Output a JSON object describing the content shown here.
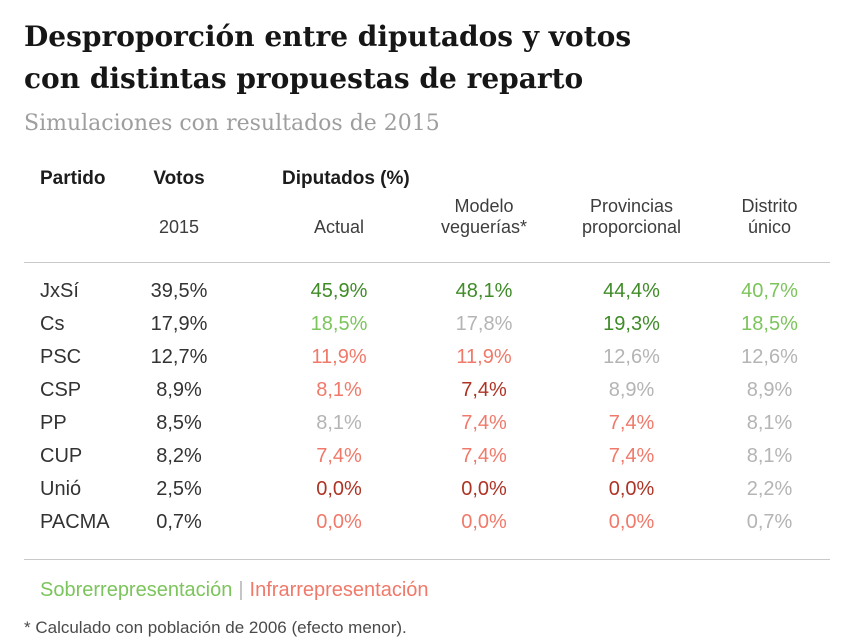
{
  "page": {
    "title_line1": "Desproporción entre diputados y votos",
    "title_line2": "con distintas propuestas de reparto",
    "subtitle": "Simulaciones con resultados de 2015",
    "footnote": "* Calculado con población de 2006 (efecto menor)."
  },
  "table": {
    "col_party": "Partido",
    "col_votes": "Votos",
    "col_votes_sub": "2015",
    "group_header": "Diputados (%)",
    "col_actual": "Actual",
    "col_model": "Modelo veguerías*",
    "col_prov": "Provincias proporcional",
    "col_district": "Distrito único"
  },
  "legend": {
    "over": "Sobrerrepresentación",
    "separator": "|",
    "under": "Infrarrepresentación",
    "over_color": "green-light",
    "under_color": "red-light"
  },
  "colors": {
    "green-dark": "#3f8b28",
    "green-light": "#7cc45c",
    "red-light": "#f0796a",
    "red-dark": "#ad3425",
    "neutral": "#b4b4b4"
  },
  "chart_data": {
    "type": "table",
    "title": "Desproporción entre diputados y votos con distintas propuestas de reparto",
    "subtitle": "Simulaciones con resultados de 2015",
    "columns": [
      "Partido",
      "Votos 2015",
      "Actual",
      "Modelo veguerías*",
      "Provincias proporcional",
      "Distrito único"
    ],
    "group_header": "Diputados (%)",
    "legend": [
      "Sobrerrepresentación",
      "Infrarrepresentación"
    ],
    "footnote": "* Calculado con población de 2006 (efecto menor).",
    "rows": [
      {
        "party": "JxSí",
        "votes": "39,5%",
        "values": [
          "45,9%",
          "48,1%",
          "44,4%",
          "40,7%"
        ],
        "colors": [
          "green-dark",
          "green-dark",
          "green-dark",
          "green-light"
        ]
      },
      {
        "party": "Cs",
        "votes": "17,9%",
        "values": [
          "18,5%",
          "17,8%",
          "19,3%",
          "18,5%"
        ],
        "colors": [
          "green-light",
          "neutral",
          "green-dark",
          "green-light"
        ]
      },
      {
        "party": "PSC",
        "votes": "12,7%",
        "values": [
          "11,9%",
          "11,9%",
          "12,6%",
          "12,6%"
        ],
        "colors": [
          "red-light",
          "red-light",
          "neutral",
          "neutral"
        ]
      },
      {
        "party": "CSP",
        "votes": "8,9%",
        "values": [
          "8,1%",
          "7,4%",
          "8,9%",
          "8,9%"
        ],
        "colors": [
          "red-light",
          "red-dark",
          "neutral",
          "neutral"
        ]
      },
      {
        "party": "PP",
        "votes": "8,5%",
        "values": [
          "8,1%",
          "7,4%",
          "7,4%",
          "8,1%"
        ],
        "colors": [
          "neutral",
          "red-light",
          "red-light",
          "neutral"
        ]
      },
      {
        "party": "CUP",
        "votes": "8,2%",
        "values": [
          "7,4%",
          "7,4%",
          "7,4%",
          "8,1%"
        ],
        "colors": [
          "red-light",
          "red-light",
          "red-light",
          "neutral"
        ]
      },
      {
        "party": "Unió",
        "votes": "2,5%",
        "values": [
          "0,0%",
          "0,0%",
          "0,0%",
          "2,2%"
        ],
        "colors": [
          "red-dark",
          "red-dark",
          "red-dark",
          "neutral"
        ]
      },
      {
        "party": "PACMA",
        "votes": "0,7%",
        "values": [
          "0,0%",
          "0,0%",
          "0,0%",
          "0,7%"
        ],
        "colors": [
          "red-light",
          "red-light",
          "red-light",
          "neutral"
        ]
      }
    ]
  }
}
